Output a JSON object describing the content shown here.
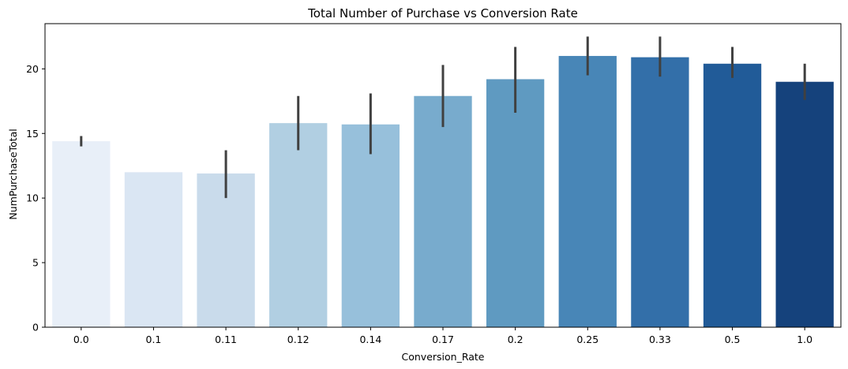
{
  "chart_data": {
    "type": "bar",
    "title": "Total Number of Purchase vs Conversion Rate",
    "xlabel": "Conversion_Rate",
    "ylabel": "NumPurchaseTotal",
    "categories": [
      "0.0",
      "0.1",
      "0.11",
      "0.12",
      "0.14",
      "0.17",
      "0.2",
      "0.25",
      "0.33",
      "0.5",
      "1.0"
    ],
    "values": [
      14.4,
      12.0,
      11.9,
      15.8,
      15.7,
      17.9,
      19.2,
      21.0,
      20.9,
      20.4,
      19.0
    ],
    "error_low": [
      14.0,
      null,
      10.0,
      13.7,
      13.4,
      15.5,
      16.6,
      19.5,
      19.4,
      19.3,
      17.6
    ],
    "error_high": [
      14.8,
      null,
      13.7,
      17.9,
      18.1,
      20.3,
      21.7,
      22.5,
      22.5,
      21.7,
      20.4
    ],
    "colors": [
      "#e8eff8",
      "#dae6f3",
      "#c9dbeb",
      "#b1cfe2",
      "#97c0db",
      "#78abcd",
      "#5f9ac1",
      "#4886b7",
      "#336fa9",
      "#215b98",
      "#15427c"
    ],
    "error_color": "#404040",
    "ylim": [
      0,
      23.5
    ],
    "yticks": [
      0,
      5,
      10,
      15,
      20
    ],
    "grid": false,
    "legend": "none"
  }
}
